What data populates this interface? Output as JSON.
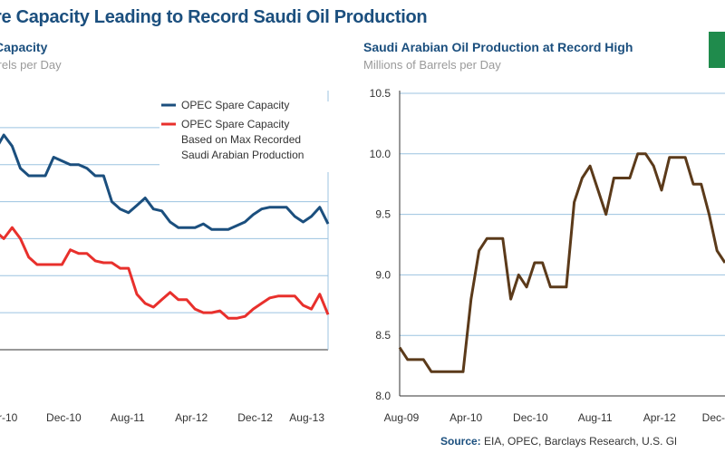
{
  "page": {
    "title": "re Capacity Leading to Record Saudi Oil Production",
    "source_label": "Source:",
    "source_text": "EIA, OPEC, Barclays Research, U.S. Gl"
  },
  "colors": {
    "blue": "#1b4f7e",
    "red": "#e8302c",
    "brown": "#5b3a1a",
    "grid": "#9cc3e0",
    "badge": "#1f8b4c"
  },
  "chart_data": [
    {
      "type": "line",
      "title": "Capacity",
      "ylabel": "arrels per Day",
      "x_labels": [
        "r-10",
        "Dec-10",
        "Aug-11",
        "Apr-12",
        "Dec-12",
        "Aug-13"
      ],
      "ylim": [
        0,
        7
      ],
      "series": [
        {
          "name": "OPEC Spare Capacity",
          "color": "#1b4f7e",
          "values": [
            5.4,
            5.8,
            5.5,
            4.9,
            4.7,
            4.7,
            4.7,
            5.2,
            5.1,
            5.0,
            5.0,
            4.9,
            4.7,
            4.7,
            4.0,
            3.8,
            3.7,
            3.9,
            4.1,
            3.8,
            3.75,
            3.45,
            3.3,
            3.3,
            3.3,
            3.4,
            3.25,
            3.25,
            3.25,
            3.35,
            3.45,
            3.65,
            3.8,
            3.85,
            3.85,
            3.85,
            3.6,
            3.45,
            3.6,
            3.85,
            3.4
          ]
        },
        {
          "name": "OPEC Spare Capacity Based on Max Recorded Saudi Arabian Production",
          "color": "#e8302c",
          "values": [
            3.2,
            3.0,
            3.3,
            3.0,
            2.5,
            2.3,
            2.3,
            2.3,
            2.3,
            2.7,
            2.6,
            2.6,
            2.4,
            2.35,
            2.35,
            2.2,
            2.2,
            1.5,
            1.25,
            1.15,
            1.35,
            1.55,
            1.35,
            1.35,
            1.1,
            1.0,
            1.0,
            1.05,
            0.85,
            0.85,
            0.9,
            1.1,
            1.25,
            1.4,
            1.45,
            1.45,
            1.45,
            1.2,
            1.1,
            1.5,
            0.95
          ]
        }
      ]
    },
    {
      "type": "line",
      "title": "Saudi Arabian Oil Production at Record High",
      "ylabel": "Millions of Barrels per Day",
      "x_labels": [
        "Aug-09",
        "Apr-10",
        "Dec-10",
        "Aug-11",
        "Apr-12",
        "Dec-"
      ],
      "y_ticks": [
        "10.5",
        "10.0",
        "9.5",
        "9.0",
        "8.5",
        "8.0"
      ],
      "ylim": [
        8.0,
        10.5
      ],
      "series": [
        {
          "name": "Saudi Arabian Oil Production",
          "color": "#5b3a1a",
          "values": [
            8.4,
            8.3,
            8.3,
            8.3,
            8.2,
            8.2,
            8.2,
            8.2,
            8.2,
            8.8,
            9.2,
            9.3,
            9.3,
            9.3,
            8.8,
            9.0,
            8.9,
            9.1,
            9.1,
            8.9,
            8.9,
            8.9,
            9.6,
            9.8,
            9.9,
            9.7,
            9.5,
            9.8,
            9.8,
            9.8,
            10.0,
            10.0,
            9.9,
            9.7,
            9.97,
            9.97,
            9.97,
            9.75,
            9.75,
            9.5,
            9.2,
            9.1
          ]
        }
      ]
    }
  ]
}
